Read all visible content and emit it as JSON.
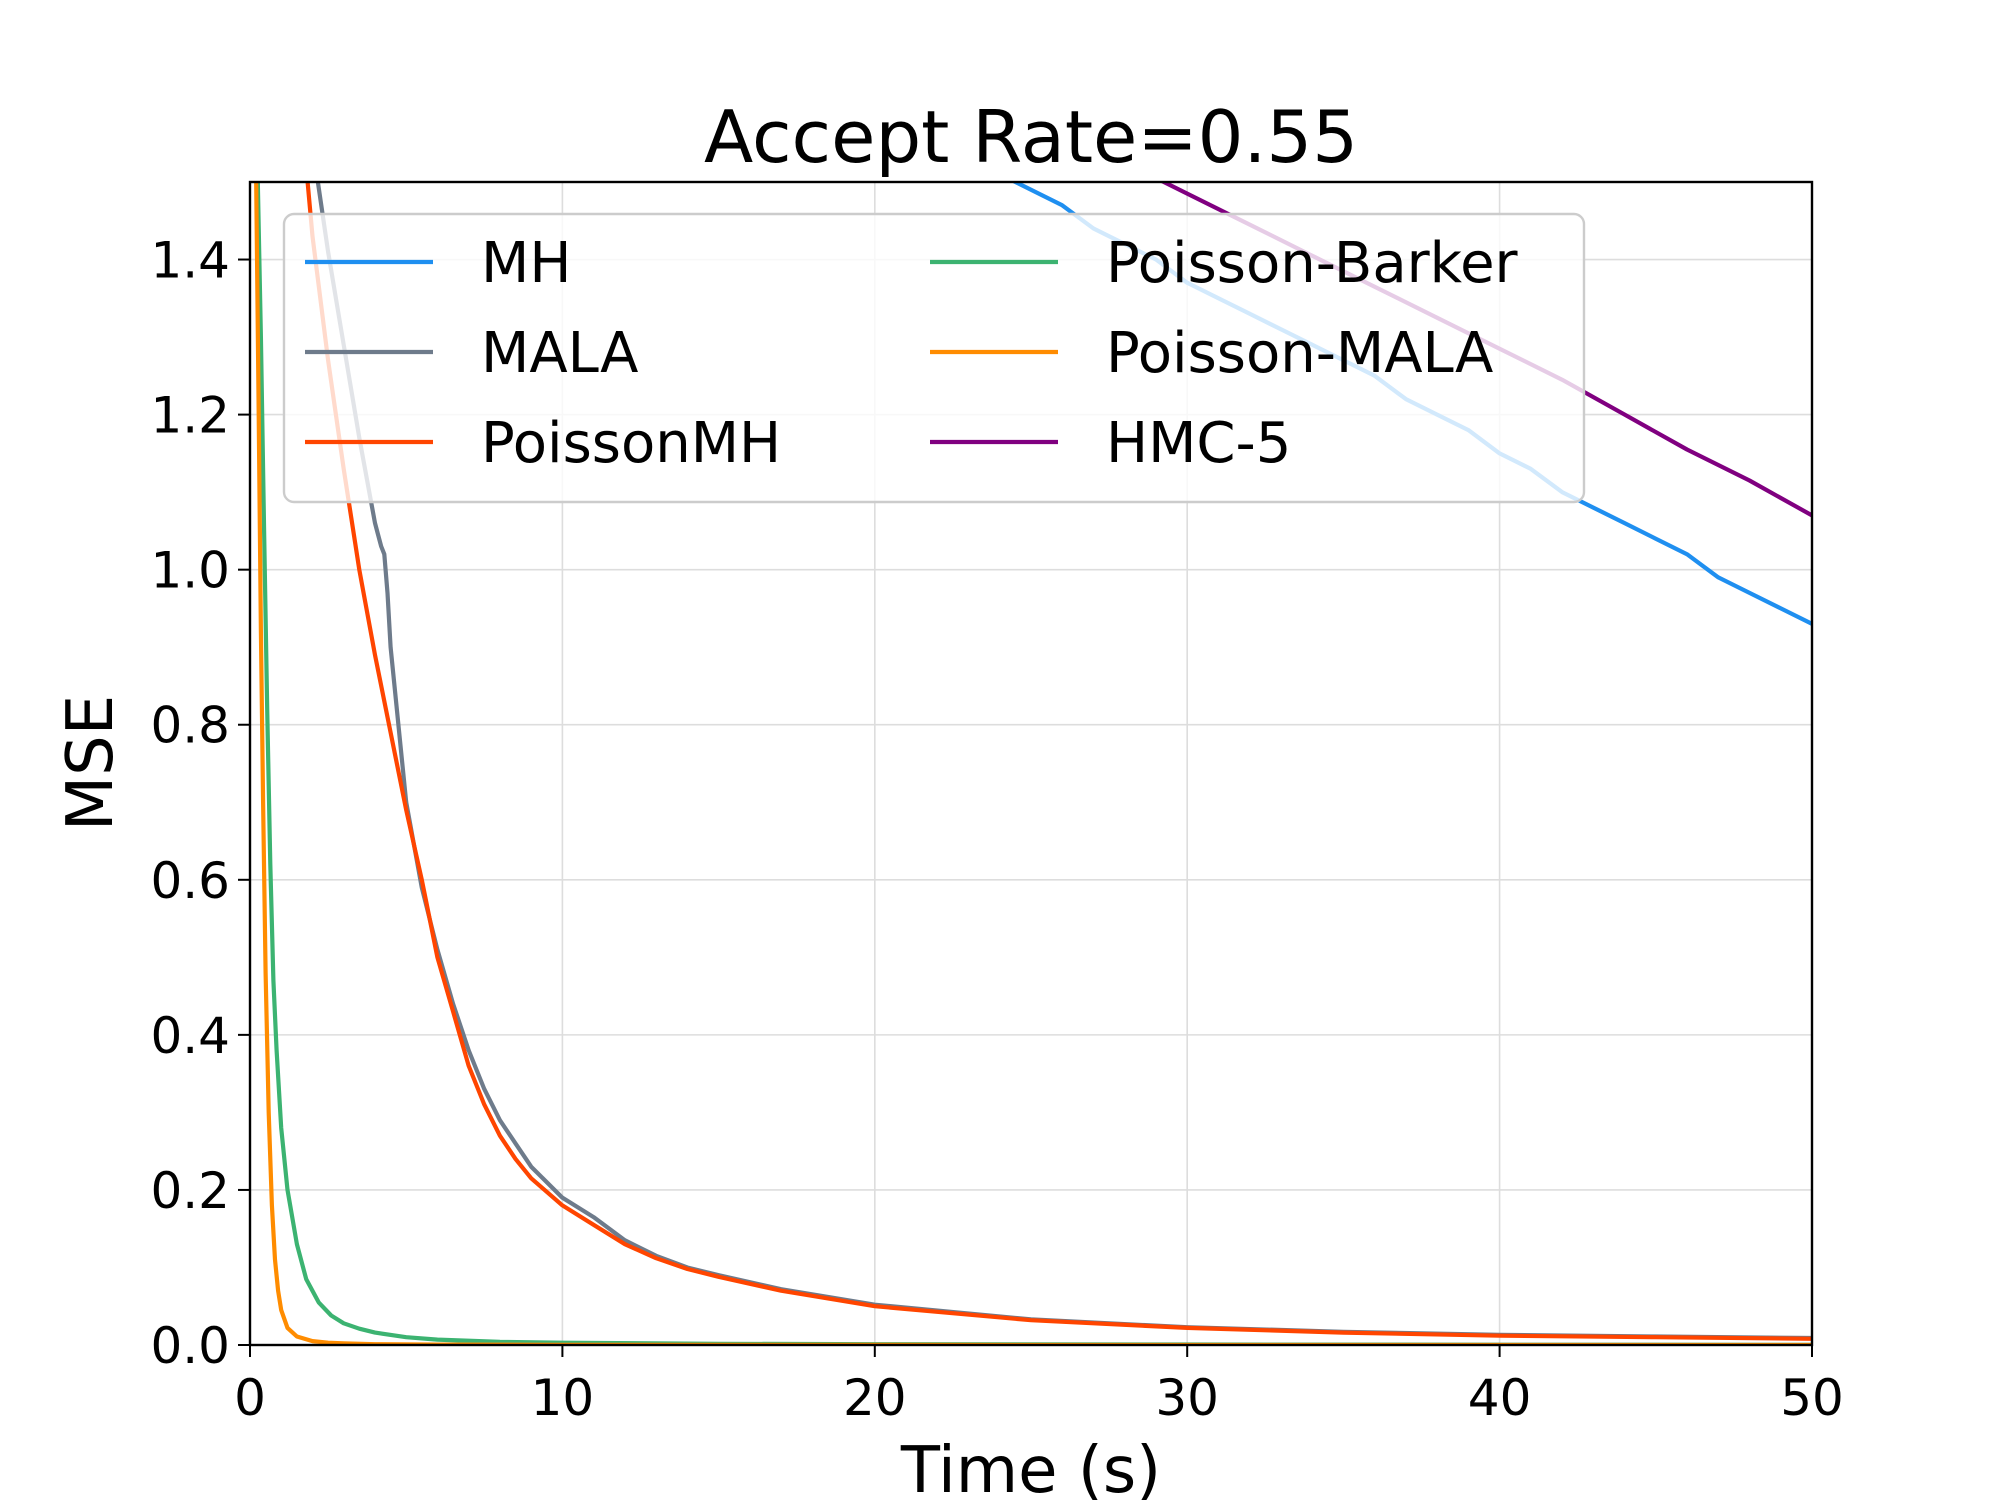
{
  "chart_data": {
    "type": "line",
    "title": "Accept Rate=0.55",
    "xlabel": "Time (s)",
    "ylabel": "MSE",
    "xlim": [
      0,
      50
    ],
    "ylim": [
      0,
      1.5
    ],
    "grid": true,
    "legend_position": "top",
    "xticks": [
      0,
      10,
      20,
      30,
      40,
      50
    ],
    "xtick_labels": [
      "0",
      "10",
      "20",
      "30",
      "40",
      "50"
    ],
    "yticks": [
      0,
      0.2,
      0.4,
      0.6,
      0.8,
      1.0,
      1.2,
      1.4
    ],
    "ytick_labels": [
      "0.0",
      "0.2",
      "0.4",
      "0.6",
      "0.8",
      "1.0",
      "1.2",
      "1.4"
    ],
    "series": [
      {
        "name": "MH",
        "color": "#1f8ff0",
        "x": [
          24.0,
          25.0,
          26.0,
          27.0,
          28.0,
          29.0,
          30.0,
          31.0,
          32.0,
          33.0,
          34.0,
          35.0,
          36.0,
          37.0,
          38.0,
          39.0,
          40.0,
          41.0,
          42.0,
          43.0,
          44.0,
          45.0,
          46.0,
          47.0,
          48.0,
          49.0,
          50.0
        ],
        "y": [
          1.51,
          1.49,
          1.47,
          1.44,
          1.42,
          1.4,
          1.37,
          1.35,
          1.33,
          1.31,
          1.29,
          1.27,
          1.25,
          1.22,
          1.2,
          1.18,
          1.15,
          1.13,
          1.1,
          1.08,
          1.06,
          1.04,
          1.02,
          0.99,
          0.97,
          0.95,
          0.93
        ]
      },
      {
        "name": "MALA",
        "color": "#6e7b8b",
        "x": [
          2.1,
          2.5,
          3.0,
          3.5,
          4.0,
          4.1,
          4.2,
          4.3,
          4.4,
          4.5,
          5.0,
          5.5,
          6.0,
          6.5,
          7.0,
          7.5,
          8.0,
          8.5,
          9.0,
          10.0,
          11.0,
          12.0,
          13.0,
          14.0,
          15.0,
          17.0,
          20.0,
          25.0,
          30.0,
          35.0,
          40.0,
          45.0,
          50.0
        ],
        "y": [
          1.52,
          1.41,
          1.29,
          1.17,
          1.06,
          1.045,
          1.03,
          1.02,
          0.97,
          0.9,
          0.7,
          0.59,
          0.51,
          0.44,
          0.38,
          0.33,
          0.29,
          0.26,
          0.23,
          0.19,
          0.165,
          0.135,
          0.115,
          0.1,
          0.09,
          0.072,
          0.052,
          0.033,
          0.023,
          0.017,
          0.013,
          0.011,
          0.009
        ]
      },
      {
        "name": "PoissonMH",
        "color": "#ff4500",
        "x": [
          1.8,
          2.0,
          2.5,
          3.0,
          3.5,
          4.0,
          4.5,
          5.0,
          5.5,
          6.0,
          6.5,
          7.0,
          7.5,
          8.0,
          8.5,
          9.0,
          10.0,
          11.0,
          12.0,
          13.0,
          14.0,
          15.0,
          17.0,
          20.0,
          25.0,
          30.0,
          35.0,
          40.0,
          45.0,
          50.0
        ],
        "y": [
          1.52,
          1.43,
          1.27,
          1.13,
          1.0,
          0.89,
          0.79,
          0.69,
          0.6,
          0.5,
          0.43,
          0.36,
          0.31,
          0.27,
          0.24,
          0.215,
          0.18,
          0.155,
          0.13,
          0.112,
          0.098,
          0.088,
          0.07,
          0.05,
          0.032,
          0.022,
          0.016,
          0.012,
          0.01,
          0.008
        ]
      },
      {
        "name": "Poisson-Barker",
        "color": "#3cb371",
        "x": [
          0.25,
          0.35,
          0.45,
          0.55,
          0.65,
          0.75,
          0.85,
          1.0,
          1.2,
          1.5,
          1.8,
          2.2,
          2.6,
          3.0,
          3.5,
          4.0,
          5.0,
          6.0,
          8.0,
          10.0,
          15.0,
          20.0,
          30.0,
          40.0,
          50.0
        ],
        "y": [
          1.5,
          1.3,
          1.05,
          0.82,
          0.62,
          0.47,
          0.38,
          0.28,
          0.2,
          0.13,
          0.085,
          0.055,
          0.038,
          0.028,
          0.021,
          0.016,
          0.01,
          0.007,
          0.004,
          0.003,
          0.0015,
          0.001,
          0.0006,
          0.0004,
          0.0003
        ]
      },
      {
        "name": "Poisson-MALA",
        "color": "#ff8c00",
        "x": [
          0.2,
          0.28,
          0.35,
          0.42,
          0.5,
          0.6,
          0.7,
          0.8,
          0.9,
          1.0,
          1.2,
          1.5,
          2.0,
          2.5,
          3.0,
          4.0,
          6.0,
          10.0,
          20.0,
          50.0
        ],
        "y": [
          1.5,
          1.2,
          0.92,
          0.7,
          0.48,
          0.3,
          0.18,
          0.11,
          0.07,
          0.045,
          0.022,
          0.011,
          0.005,
          0.003,
          0.002,
          0.001,
          0.0005,
          0.0002,
          0.0001,
          0.0
        ]
      },
      {
        "name": "HMC-5",
        "color": "#800080",
        "x": [
          29.0,
          30.0,
          32.0,
          34.0,
          36.0,
          38.0,
          40.0,
          42.0,
          44.0,
          46.0,
          48.0,
          50.0
        ],
        "y": [
          1.505,
          1.485,
          1.445,
          1.405,
          1.365,
          1.325,
          1.285,
          1.245,
          1.2,
          1.155,
          1.115,
          1.07
        ]
      }
    ]
  }
}
